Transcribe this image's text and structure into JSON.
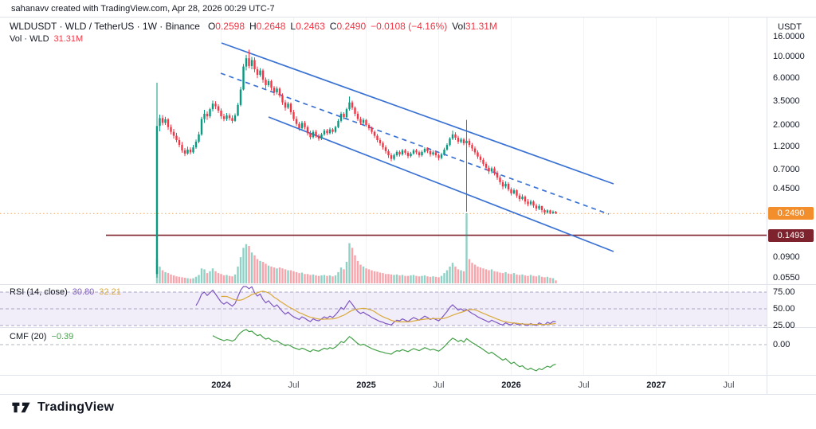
{
  "attribution": "sahanavv created with TradingView.com, Apr 28, 2026 00:29 UTC-7",
  "header": {
    "title": "WLDUSDT · WLD / TetherUS · 1W · Binance",
    "ohlc": {
      "o_label": "O",
      "o": "0.2598",
      "h_label": "H",
      "h": "0.2648",
      "l_label": "L",
      "l": "0.2463",
      "c_label": "C",
      "c": "0.2490",
      "change": "−0.0108 (−4.16%)",
      "vol_label": "Vol",
      "vol": "31.31M"
    },
    "vol_row": {
      "label": "Vol · WLD",
      "value": "31.31M"
    }
  },
  "panes": {
    "rsi": {
      "label": "RSI (14, close)",
      "value": "30.80",
      "ma_value": "32.21"
    },
    "cmf": {
      "label": "CMF (20)",
      "value": "−0.39"
    }
  },
  "axes": {
    "currency_label": "USDT",
    "price_ticks": [
      {
        "label": "16.0000",
        "price": 16
      },
      {
        "label": "10.0000",
        "price": 10
      },
      {
        "label": "6.0000",
        "price": 6
      },
      {
        "label": "3.5000",
        "price": 3.5
      },
      {
        "label": "2.0000",
        "price": 2
      },
      {
        "label": "1.2000",
        "price": 1.2
      },
      {
        "label": "0.7000",
        "price": 0.7
      },
      {
        "label": "0.4500",
        "price": 0.45
      },
      {
        "label": "0.0900",
        "price": 0.09
      },
      {
        "label": "0.0550",
        "price": 0.055
      }
    ],
    "price_badges": [
      {
        "label": "0.2490",
        "price": 0.249,
        "color": "#F28E2C"
      },
      {
        "label": "0.1493",
        "price": 0.1493,
        "color": "#7E222E"
      }
    ],
    "rsi_ticks": [
      {
        "label": "75.00",
        "value": 75
      },
      {
        "label": "50.00",
        "value": 50
      },
      {
        "label": "25.00",
        "value": 25
      }
    ],
    "cmf_ticks": [
      {
        "label": "0.00",
        "value": 0
      }
    ],
    "time_ticks": [
      {
        "label": "2024",
        "week": 23,
        "year": true
      },
      {
        "label": "Jul",
        "week": 49
      },
      {
        "label": "2025",
        "week": 75,
        "year": true
      },
      {
        "label": "Jul",
        "week": 101
      },
      {
        "label": "2026",
        "week": 127,
        "year": true
      },
      {
        "label": "Jul",
        "week": 153
      },
      {
        "label": "2027",
        "week": 179,
        "year": true
      },
      {
        "label": "Jul",
        "week": 205
      }
    ]
  },
  "chart_data": {
    "type": "candlestick",
    "symbol": "WLDUSDT",
    "interval": "1W",
    "exchange": "Binance",
    "scale": "log",
    "first_candle_date": "2023-07-24",
    "ylim": [
      0.05,
      16
    ],
    "colors": {
      "up": "#089981",
      "down": "#F23645",
      "vol_up": "rgba(8,153,129,0.45)",
      "vol_down": "rgba(242,54,69,0.45)",
      "channel": "#3A72D4",
      "hline": "#7E222E",
      "last_price_line": "rgba(242,142,44,0.8)",
      "rsi": "#7E57C2",
      "rsi_ma": "#DAA93C",
      "cmf": "#43A047"
    },
    "candles": [
      [
        0.06,
        5.4,
        0.055,
        1.95
      ],
      [
        1.95,
        2.55,
        1.72,
        2.35
      ],
      [
        2.35,
        2.52,
        1.98,
        2.1
      ],
      [
        2.1,
        2.42,
        2.0,
        2.28
      ],
      [
        2.28,
        2.35,
        1.78,
        1.9
      ],
      [
        1.9,
        2.02,
        1.6,
        1.7
      ],
      [
        1.7,
        1.82,
        1.45,
        1.55
      ],
      [
        1.55,
        1.66,
        1.33,
        1.4
      ],
      [
        1.4,
        1.5,
        1.18,
        1.25
      ],
      [
        1.25,
        1.34,
        1.04,
        1.1
      ],
      [
        1.1,
        1.16,
        0.96,
        1.02
      ],
      [
        1.02,
        1.2,
        0.99,
        1.12
      ],
      [
        1.12,
        1.18,
        1.0,
        1.05
      ],
      [
        1.05,
        1.25,
        1.02,
        1.18
      ],
      [
        1.18,
        1.42,
        1.14,
        1.35
      ],
      [
        1.35,
        1.7,
        1.3,
        1.6
      ],
      [
        1.6,
        2.42,
        1.55,
        2.3
      ],
      [
        2.3,
        2.85,
        2.1,
        2.6
      ],
      [
        2.6,
        2.75,
        2.25,
        2.45
      ],
      [
        2.45,
        3.0,
        2.35,
        2.9
      ],
      [
        2.9,
        3.55,
        2.75,
        3.3
      ],
      [
        3.3,
        3.5,
        2.9,
        3.1
      ],
      [
        3.1,
        3.25,
        2.65,
        2.8
      ],
      [
        2.8,
        2.95,
        2.3,
        2.45
      ],
      [
        2.45,
        2.6,
        2.18,
        2.3
      ],
      [
        2.3,
        2.65,
        2.2,
        2.5
      ],
      [
        2.5,
        2.62,
        2.22,
        2.35
      ],
      [
        2.35,
        2.5,
        2.08,
        2.2
      ],
      [
        2.2,
        2.62,
        2.15,
        2.5
      ],
      [
        2.5,
        3.35,
        2.45,
        3.2
      ],
      [
        3.2,
        4.9,
        3.1,
        4.6
      ],
      [
        4.6,
        8.4,
        4.5,
        7.9
      ],
      [
        7.9,
        10.4,
        7.2,
        9.6
      ],
      [
        9.6,
        11.74,
        7.6,
        8.0
      ],
      [
        8.0,
        9.9,
        7.4,
        9.2
      ],
      [
        9.2,
        9.8,
        6.9,
        7.4
      ],
      [
        7.4,
        7.9,
        6.0,
        6.5
      ],
      [
        6.5,
        7.6,
        6.2,
        7.2
      ],
      [
        7.2,
        7.5,
        5.4,
        5.8
      ],
      [
        5.8,
        6.1,
        4.7,
        5.1
      ],
      [
        5.1,
        5.9,
        4.9,
        5.6
      ],
      [
        5.6,
        5.8,
        4.5,
        4.8
      ],
      [
        4.8,
        5.0,
        4.0,
        4.3
      ],
      [
        4.3,
        4.95,
        4.1,
        4.7
      ],
      [
        4.7,
        4.85,
        3.8,
        4.0
      ],
      [
        4.0,
        4.2,
        3.2,
        3.4
      ],
      [
        3.4,
        3.6,
        2.8,
        3.0
      ],
      [
        3.0,
        3.45,
        2.9,
        3.3
      ],
      [
        3.3,
        3.4,
        2.55,
        2.7
      ],
      [
        2.7,
        2.85,
        2.2,
        2.3
      ],
      [
        2.3,
        2.45,
        1.95,
        2.05
      ],
      [
        2.05,
        2.15,
        1.75,
        1.85
      ],
      [
        1.85,
        2.2,
        1.8,
        2.1
      ],
      [
        2.1,
        2.2,
        1.8,
        1.9
      ],
      [
        1.9,
        1.98,
        1.56,
        1.65
      ],
      [
        1.65,
        1.75,
        1.42,
        1.5
      ],
      [
        1.5,
        1.78,
        1.45,
        1.7
      ],
      [
        1.7,
        1.78,
        1.48,
        1.55
      ],
      [
        1.55,
        1.62,
        1.38,
        1.45
      ],
      [
        1.45,
        1.66,
        1.4,
        1.6
      ],
      [
        1.6,
        1.82,
        1.55,
        1.75
      ],
      [
        1.75,
        1.82,
        1.58,
        1.65
      ],
      [
        1.65,
        1.88,
        1.6,
        1.8
      ],
      [
        1.8,
        1.86,
        1.62,
        1.7
      ],
      [
        1.7,
        1.96,
        1.65,
        1.9
      ],
      [
        1.9,
        2.3,
        1.85,
        2.2
      ],
      [
        2.2,
        2.72,
        2.12,
        2.6
      ],
      [
        2.6,
        2.7,
        2.28,
        2.4
      ],
      [
        2.4,
        3.0,
        2.3,
        2.9
      ],
      [
        2.9,
        3.9,
        2.8,
        3.4
      ],
      [
        3.4,
        3.55,
        2.85,
        3.0
      ],
      [
        3.0,
        3.1,
        2.45,
        2.6
      ],
      [
        2.6,
        2.75,
        2.2,
        2.3
      ],
      [
        2.3,
        2.42,
        2.0,
        2.1
      ],
      [
        2.1,
        2.35,
        2.02,
        2.25
      ],
      [
        2.25,
        2.3,
        1.92,
        2.0
      ],
      [
        2.0,
        2.08,
        1.76,
        1.85
      ],
      [
        1.85,
        1.92,
        1.62,
        1.7
      ],
      [
        1.7,
        1.76,
        1.47,
        1.55
      ],
      [
        1.55,
        1.62,
        1.33,
        1.4
      ],
      [
        1.4,
        1.47,
        1.23,
        1.3
      ],
      [
        1.3,
        1.36,
        1.12,
        1.18
      ],
      [
        1.18,
        1.24,
        1.02,
        1.08
      ],
      [
        1.08,
        1.13,
        0.92,
        0.98
      ],
      [
        0.98,
        1.03,
        0.85,
        0.9
      ],
      [
        0.9,
        1.02,
        0.87,
        0.98
      ],
      [
        0.98,
        1.1,
        0.95,
        1.06
      ],
      [
        1.06,
        1.1,
        0.95,
        1.0
      ],
      [
        1.0,
        1.14,
        0.97,
        1.1
      ],
      [
        1.1,
        1.14,
        0.99,
        1.04
      ],
      [
        1.04,
        1.08,
        0.91,
        0.96
      ],
      [
        0.96,
        1.06,
        0.93,
        1.02
      ],
      [
        1.02,
        1.14,
        0.99,
        1.1
      ],
      [
        1.1,
        1.14,
        1.0,
        1.05
      ],
      [
        1.05,
        1.09,
        0.93,
        0.98
      ],
      [
        0.98,
        1.1,
        0.95,
        1.06
      ],
      [
        1.06,
        1.18,
        1.03,
        1.14
      ],
      [
        1.14,
        1.18,
        1.03,
        1.08
      ],
      [
        1.08,
        1.12,
        0.95,
        1.0
      ],
      [
        1.0,
        1.1,
        0.97,
        1.05
      ],
      [
        1.05,
        1.09,
        0.93,
        0.98
      ],
      [
        0.98,
        1.02,
        0.87,
        0.92
      ],
      [
        0.92,
        1.04,
        0.89,
        1.0
      ],
      [
        1.0,
        1.17,
        0.97,
        1.12
      ],
      [
        1.12,
        1.3,
        1.09,
        1.25
      ],
      [
        1.25,
        1.5,
        1.21,
        1.45
      ],
      [
        1.45,
        1.75,
        1.4,
        1.6
      ],
      [
        1.6,
        1.68,
        1.4,
        1.48
      ],
      [
        1.48,
        1.55,
        1.28,
        1.35
      ],
      [
        1.35,
        1.48,
        1.3,
        1.42
      ],
      [
        1.42,
        1.47,
        1.24,
        1.3
      ],
      [
        1.3,
        2.25,
        0.26,
        1.38
      ],
      [
        1.38,
        1.45,
        1.18,
        1.25
      ],
      [
        1.25,
        1.31,
        1.08,
        1.15
      ],
      [
        1.15,
        1.21,
        0.99,
        1.05
      ],
      [
        1.05,
        1.1,
        0.9,
        0.95
      ],
      [
        0.95,
        1.0,
        0.83,
        0.88
      ],
      [
        0.88,
        0.92,
        0.76,
        0.8
      ],
      [
        0.8,
        0.84,
        0.69,
        0.73
      ],
      [
        0.73,
        0.77,
        0.63,
        0.67
      ],
      [
        0.67,
        0.75,
        0.64,
        0.72
      ],
      [
        0.72,
        0.75,
        0.61,
        0.65
      ],
      [
        0.65,
        0.68,
        0.55,
        0.58
      ],
      [
        0.58,
        0.61,
        0.49,
        0.52
      ],
      [
        0.52,
        0.55,
        0.44,
        0.47
      ],
      [
        0.47,
        0.53,
        0.45,
        0.5
      ],
      [
        0.5,
        0.52,
        0.42,
        0.44
      ],
      [
        0.44,
        0.46,
        0.38,
        0.4
      ],
      [
        0.4,
        0.45,
        0.39,
        0.43
      ],
      [
        0.43,
        0.44,
        0.36,
        0.38
      ],
      [
        0.38,
        0.4,
        0.33,
        0.35
      ],
      [
        0.35,
        0.39,
        0.34,
        0.37
      ],
      [
        0.37,
        0.38,
        0.31,
        0.33
      ],
      [
        0.33,
        0.35,
        0.295,
        0.31
      ],
      [
        0.31,
        0.345,
        0.3,
        0.33
      ],
      [
        0.33,
        0.34,
        0.285,
        0.3
      ],
      [
        0.3,
        0.315,
        0.265,
        0.28
      ],
      [
        0.28,
        0.31,
        0.27,
        0.296
      ],
      [
        0.296,
        0.3,
        0.255,
        0.27
      ],
      [
        0.27,
        0.28,
        0.242,
        0.255
      ],
      [
        0.255,
        0.275,
        0.248,
        0.268
      ],
      [
        0.268,
        0.272,
        0.245,
        0.252
      ],
      [
        0.252,
        0.268,
        0.246,
        0.2598
      ],
      [
        0.2598,
        0.2648,
        0.2463,
        0.249
      ]
    ],
    "volumes": [
      260,
      180,
      140,
      120,
      110,
      95,
      85,
      75,
      70,
      65,
      60,
      55,
      50,
      55,
      70,
      90,
      160,
      150,
      110,
      130,
      160,
      130,
      110,
      100,
      85,
      90,
      80,
      75,
      95,
      180,
      280,
      380,
      420,
      400,
      330,
      300,
      260,
      240,
      230,
      210,
      190,
      180,
      170,
      160,
      170,
      160,
      150,
      140,
      140,
      130,
      120,
      110,
      115,
      100,
      100,
      90,
      95,
      85,
      80,
      85,
      90,
      80,
      85,
      75,
      85,
      120,
      170,
      150,
      230,
      430,
      380,
      300,
      240,
      200,
      180,
      160,
      150,
      140,
      130,
      125,
      115,
      110,
      100,
      100,
      95,
      90,
      95,
      85,
      90,
      80,
      80,
      85,
      90,
      80,
      75,
      80,
      85,
      75,
      70,
      75,
      70,
      65,
      80,
      110,
      140,
      180,
      220,
      180,
      150,
      140,
      130,
      750,
      260,
      220,
      200,
      180,
      170,
      160,
      150,
      140,
      150,
      130,
      125,
      115,
      110,
      120,
      105,
      100,
      110,
      95,
      90,
      95,
      85,
      80,
      90,
      80,
      75,
      85,
      70,
      65,
      70,
      60,
      55,
      31.31
    ],
    "indicators": {
      "rsi": {
        "start_index": 14,
        "levels": [
          75,
          50,
          25
        ],
        "values": [
          55,
          62,
          72,
          75,
          70,
          74,
          78,
          72,
          66,
          60,
          57,
          60,
          57,
          54,
          58,
          68,
          78,
          86,
          89,
          80,
          83,
          74,
          69,
          72,
          64,
          59,
          62,
          57,
          53,
          56,
          51,
          46,
          42,
          45,
          41,
          38,
          36,
          34,
          38,
          36,
          33,
          31,
          35,
          33,
          32,
          35,
          38,
          36,
          39,
          37,
          41,
          46,
          52,
          49,
          56,
          62,
          57,
          51,
          46,
          43,
          45,
          42,
          40,
          37,
          35,
          33,
          31,
          30,
          28,
          27,
          26,
          30,
          33,
          32,
          35,
          33,
          31,
          34,
          37,
          35,
          33,
          36,
          39,
          37,
          34,
          36,
          34,
          32,
          36,
          41,
          46,
          52,
          56,
          52,
          48,
          50,
          47,
          49,
          46,
          43,
          41,
          38,
          36,
          34,
          32,
          30,
          33,
          31,
          29,
          27,
          26,
          29,
          27,
          26,
          29,
          27,
          26,
          28,
          26,
          25,
          28,
          26,
          25,
          29,
          27,
          26,
          30,
          28,
          31,
          30.8
        ]
      },
      "cmf": {
        "start_index": 20,
        "levels": [
          0
        ],
        "values": [
          0.18,
          0.15,
          0.12,
          0.1,
          0.08,
          0.1,
          0.09,
          0.07,
          0.1,
          0.18,
          0.24,
          0.28,
          0.3,
          0.26,
          0.27,
          0.22,
          0.18,
          0.2,
          0.15,
          0.11,
          0.13,
          0.09,
          0.06,
          0.08,
          0.04,
          0.01,
          -0.02,
          0.0,
          -0.03,
          -0.06,
          -0.08,
          -0.1,
          -0.07,
          -0.09,
          -0.12,
          -0.14,
          -0.1,
          -0.12,
          -0.13,
          -0.1,
          -0.07,
          -0.09,
          -0.06,
          -0.08,
          -0.05,
          0.0,
          0.06,
          0.04,
          0.1,
          0.16,
          0.12,
          0.07,
          0.02,
          -0.01,
          0.01,
          -0.02,
          -0.05,
          -0.08,
          -0.1,
          -0.12,
          -0.14,
          -0.15,
          -0.17,
          -0.18,
          -0.19,
          -0.15,
          -0.12,
          -0.13,
          -0.1,
          -0.12,
          -0.14,
          -0.11,
          -0.08,
          -0.1,
          -0.12,
          -0.09,
          -0.06,
          -0.08,
          -0.11,
          -0.09,
          -0.11,
          -0.13,
          -0.09,
          -0.04,
          0.02,
          0.08,
          0.13,
          0.1,
          0.06,
          0.09,
          0.05,
          0.12,
          0.08,
          0.04,
          0.01,
          -0.03,
          -0.06,
          -0.1,
          -0.14,
          -0.18,
          -0.15,
          -0.19,
          -0.23,
          -0.27,
          -0.31,
          -0.28,
          -0.33,
          -0.38,
          -0.35,
          -0.4,
          -0.44,
          -0.42,
          -0.47,
          -0.5,
          -0.47,
          -0.5,
          -0.52,
          -0.48,
          -0.5,
          -0.46,
          -0.43,
          -0.45,
          -0.41,
          -0.39
        ]
      }
    },
    "overlays": {
      "channel": {
        "upper": [
          278,
          54,
          770,
          231
        ],
        "middle": [
          277,
          92,
          764,
          269
        ],
        "lower": [
          337,
          147,
          770,
          316
        ]
      },
      "hline_price": 0.1493,
      "last_price": 0.249
    }
  },
  "logo": {
    "text": "TradingView"
  }
}
